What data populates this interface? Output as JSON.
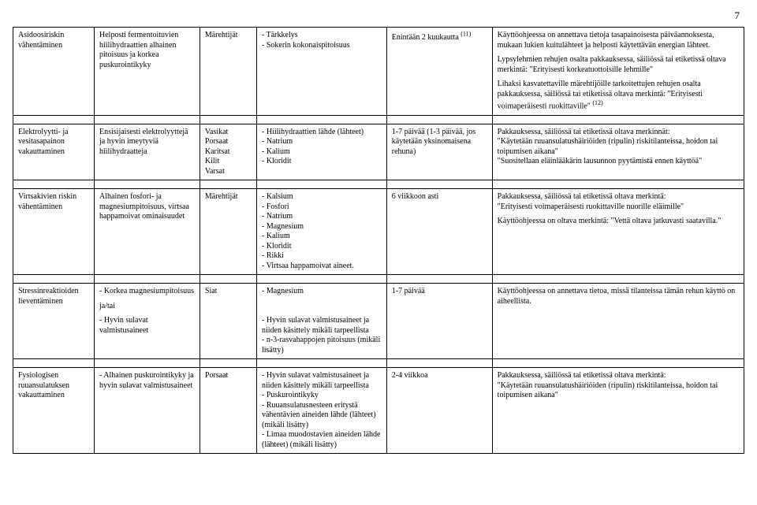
{
  "pageNumber": "7",
  "rows": [
    {
      "c1": "Asidoosiriskin vähentäminen",
      "c2": "Helposti fermentoituvien hiilihydraattien alhainen pitoisuus ja korkea puskurointikyky",
      "c3": "Märehtijät",
      "c4": "- Tärkkelys\n- Sokerin kokonaispitoisuus",
      "c5": "Enintään 2 kuukautta (11)",
      "c6a": "Käyttöohjeessa on annettava tietoja tasapainoisesta päiväannoksesta, mukaan lukien kuitulähteet ja helposti käytettävän energian lähteet.",
      "c6b": "Lypsylehmien rehujen osalta pakkauksessa, säiliössä tai etiketissä oltava merkintä: \"Erityisesti korkeatuottoisille lehmille\"",
      "c6c": "Lihaksi kasvatettaville märehtijöille tarkoitettujen rehujen osalta pakkauksessa, säiliössä tai etiketissä oltava merkintä: \"Erityisesti voimaperäisesti ruokittaville\" (12)"
    },
    {
      "c1": "Elektrolyytti- ja vesitasapainon vakauttaminen",
      "c2": "Ensisijaisesti elektrolyyttejä ja hyvin imeytyviä hiilihydraatteja",
      "c3": "Vasikat\nPorsaat\nKaritsat\nKilit\nVarsat",
      "c4": "- Hiilihydraattien lähde (lähteet)\n- Natrium\n- Kalium\n- Kloridit",
      "c5": "1-7 päivää (1-3 päivää, jos käytetään yksinomaisena rehuna)",
      "c6a": "Pakkauksessa, säiliössä tai etiketissä oltava merkinnät:\n\"Käytetään ruuansulatushäiriöiden (ripulin) riskitilanteissa, hoidon tai toipumisen aikana\"\n\"Suositellaan eläinlääkärin lausunnon pyytämistä ennen käyttöä\""
    },
    {
      "c1": "Virtsakivien riskin vähentäminen",
      "c2": "Alhainen fosfori- ja magnesiumpitoisuus, virtsaa happamoivat ominaisuudet",
      "c3": "Märehtijät",
      "c4": "- Kalsium\n- Fosfori\n- Natrium\n- Magnesium\n- Kalium\n- Kloridit\n- Rikki\n- Virtsaa happamoivat aineet.",
      "c5": "6 viikkoon asti",
      "c6a": "Pakkauksessa, säiliössä tai etiketissä oltava merkintä:\n\"Erityisesti voimaperäisesti ruokittaville nuorille eläimille\"",
      "c6b": "Käyttöohjeessa on oltava merkintä: \"Vettä oltava jatkuvasti saatavilla.\""
    },
    {
      "c1": "Stressinreaktioiden lieventäminen",
      "c2a": "- Korkea magnesiumpitoisuus",
      "c2b": "ja/tai",
      "c2c": "- Hyvin sulavat valmistusaineet",
      "c3": "Siat",
      "c4a": "- Magnesium",
      "c4b": "- Hyvin sulavat valmistusaineet ja niiden käsittely mikäli tarpeellista\n- n-3-rasvahappojen pitoisuus (mikäli lisätty)",
      "c5": "1-7 päivää",
      "c6a": "Käyttöohjeessa on annettava tietoa, missä tilanteissa tämän rehun käyttö on aiheellista."
    },
    {
      "c1": "Fysiologisen ruuansulatuksen vakauttaminen",
      "c2": "- Alhainen puskurointikyky ja\nhyvin sulavat valmistusaineet",
      "c3": "Porsaat",
      "c4": "- Hyvin sulavat valmistusaineet ja niiden käsittely mikäli tarpeellista\n- Puskurointikyky\n- Ruuansulatusnesteen eritystä vähentävien aineiden lähde (lähteet) (mikäli lisätty)\n- Limaa muodostavien aineiden lähde (lähteet) (mikäli lisätty)",
      "c5": "2-4 viikkoa",
      "c6a": "Pakkauksessa, säiliössä tai etiketissä oltava merkintä:\n\"Käytetään ruuansulatushäiriöiden (ripulin) riskitilanteissa, hoidon tai toipumisen aikana\""
    }
  ]
}
